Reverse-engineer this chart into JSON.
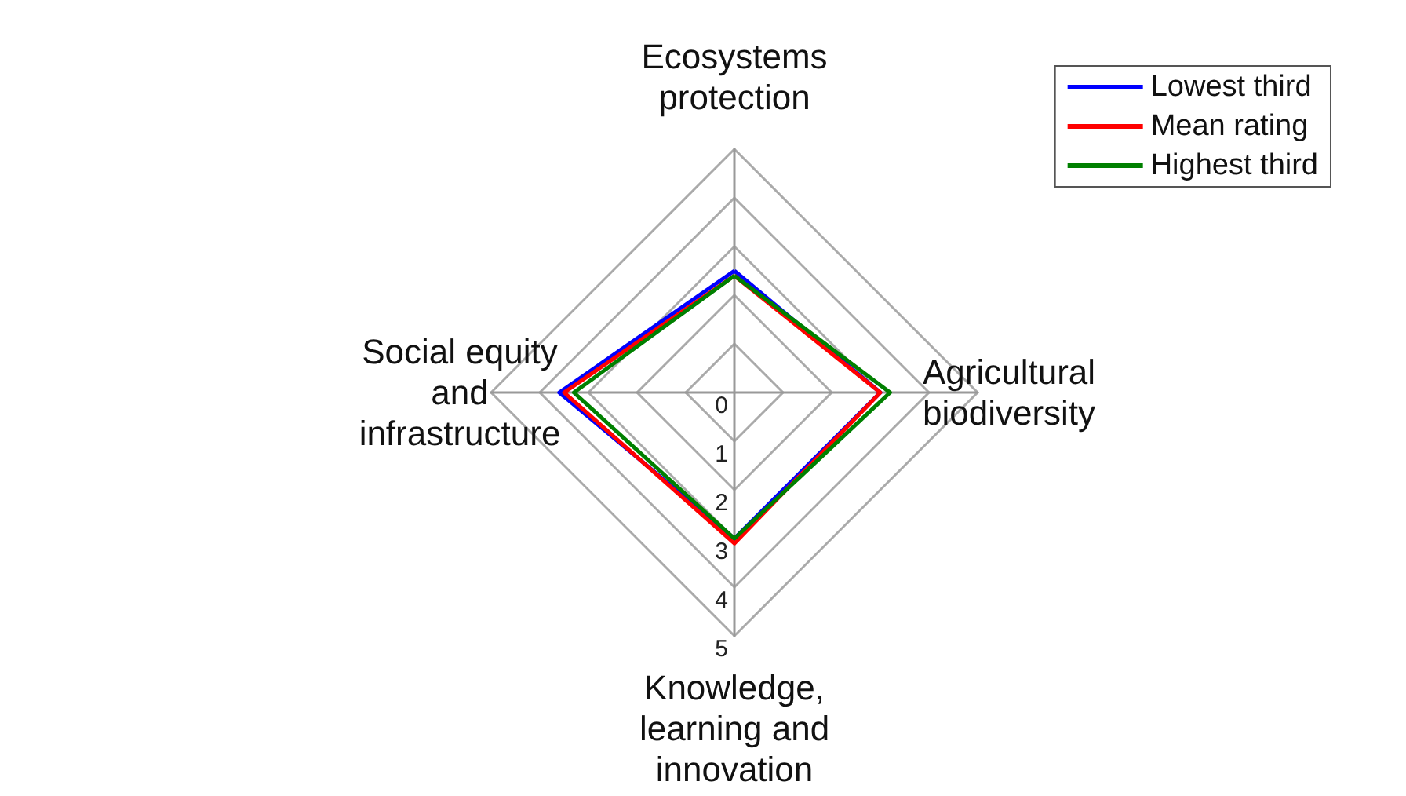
{
  "chart_data": {
    "type": "radar",
    "categories": [
      "Ecosystems protection",
      "Agricultural biodiversity",
      "Knowledge, learning and innovation",
      "Social equity and infrastructure"
    ],
    "ylim": [
      0,
      5
    ],
    "yticks": [
      0,
      1,
      2,
      3,
      4,
      5
    ],
    "grid": true,
    "legend": "top right",
    "series": [
      {
        "name": "Lowest third",
        "color": "#0000ff",
        "values": [
          2.5,
          3.0,
          3.0,
          3.6
        ]
      },
      {
        "name": "Mean rating",
        "color": "#ff0000",
        "values": [
          2.4,
          3.0,
          3.1,
          3.5
        ]
      },
      {
        "name": "Highest third",
        "color": "#008000",
        "values": [
          2.4,
          3.2,
          3.0,
          3.3
        ]
      }
    ]
  }
}
